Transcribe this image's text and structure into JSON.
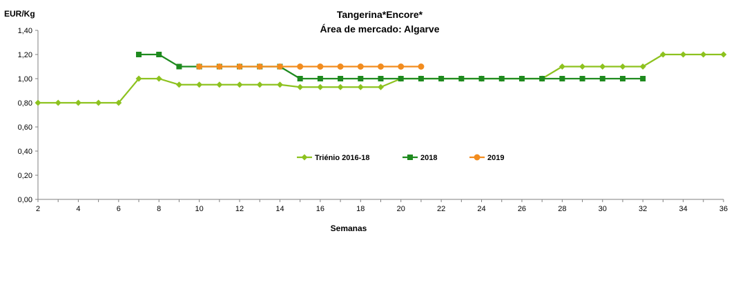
{
  "chart_data": {
    "type": "line",
    "title": "Tangerina*Encore*",
    "subtitle": "Área de mercado: Algarve",
    "xlabel": "Semanas",
    "ylabel": "EUR/Kg",
    "xlim": [
      2,
      36
    ],
    "ylim": [
      0,
      1.4
    ],
    "xticks": [
      "2",
      "4",
      "6",
      "8",
      "10",
      "12",
      "14",
      "16",
      "18",
      "20",
      "22",
      "24",
      "26",
      "28",
      "30",
      "32",
      "34",
      "36"
    ],
    "yticks": [
      "0,00",
      "0,20",
      "0,40",
      "0,60",
      "0,80",
      "1,00",
      "1,20",
      "1,40"
    ],
    "grid": false,
    "legend_position": "center",
    "series": [
      {
        "name": "Triénio 2016-18",
        "color": "#8DC21F",
        "marker": "diamond",
        "x": [
          2,
          3,
          4,
          5,
          6,
          7,
          8,
          9,
          10,
          11,
          12,
          13,
          14,
          15,
          16,
          17,
          18,
          19,
          20,
          21,
          22,
          23,
          24,
          25,
          26,
          27,
          28,
          29,
          30,
          31,
          32,
          33,
          34,
          35,
          36
        ],
        "values": [
          0.8,
          0.8,
          0.8,
          0.8,
          0.8,
          1.0,
          1.0,
          0.95,
          0.95,
          0.95,
          0.95,
          0.95,
          0.95,
          0.93,
          0.93,
          0.93,
          0.93,
          0.93,
          1.0,
          1.0,
          1.0,
          1.0,
          1.0,
          1.0,
          1.0,
          1.0,
          1.1,
          1.1,
          1.1,
          1.1,
          1.1,
          1.2,
          1.2,
          1.2,
          1.2
        ]
      },
      {
        "name": "2018",
        "color": "#1E8A1E",
        "marker": "square",
        "x": [
          7,
          8,
          9,
          10,
          11,
          12,
          13,
          14,
          15,
          16,
          17,
          18,
          19,
          20,
          21,
          22,
          23,
          24,
          25,
          26,
          27,
          28,
          29,
          30,
          31,
          32
        ],
        "values": [
          1.2,
          1.2,
          1.1,
          1.1,
          1.1,
          1.1,
          1.1,
          1.1,
          1.0,
          1.0,
          1.0,
          1.0,
          1.0,
          1.0,
          1.0,
          1.0,
          1.0,
          1.0,
          1.0,
          1.0,
          1.0,
          1.0,
          1.0,
          1.0,
          1.0,
          1.0
        ]
      },
      {
        "name": "2019",
        "color": "#F28C1E",
        "marker": "circle",
        "x": [
          10,
          11,
          12,
          13,
          14,
          15,
          16,
          17,
          18,
          19,
          20,
          21
        ],
        "values": [
          1.1,
          1.1,
          1.1,
          1.1,
          1.1,
          1.1,
          1.1,
          1.1,
          1.1,
          1.1,
          1.1,
          1.1
        ]
      }
    ]
  }
}
